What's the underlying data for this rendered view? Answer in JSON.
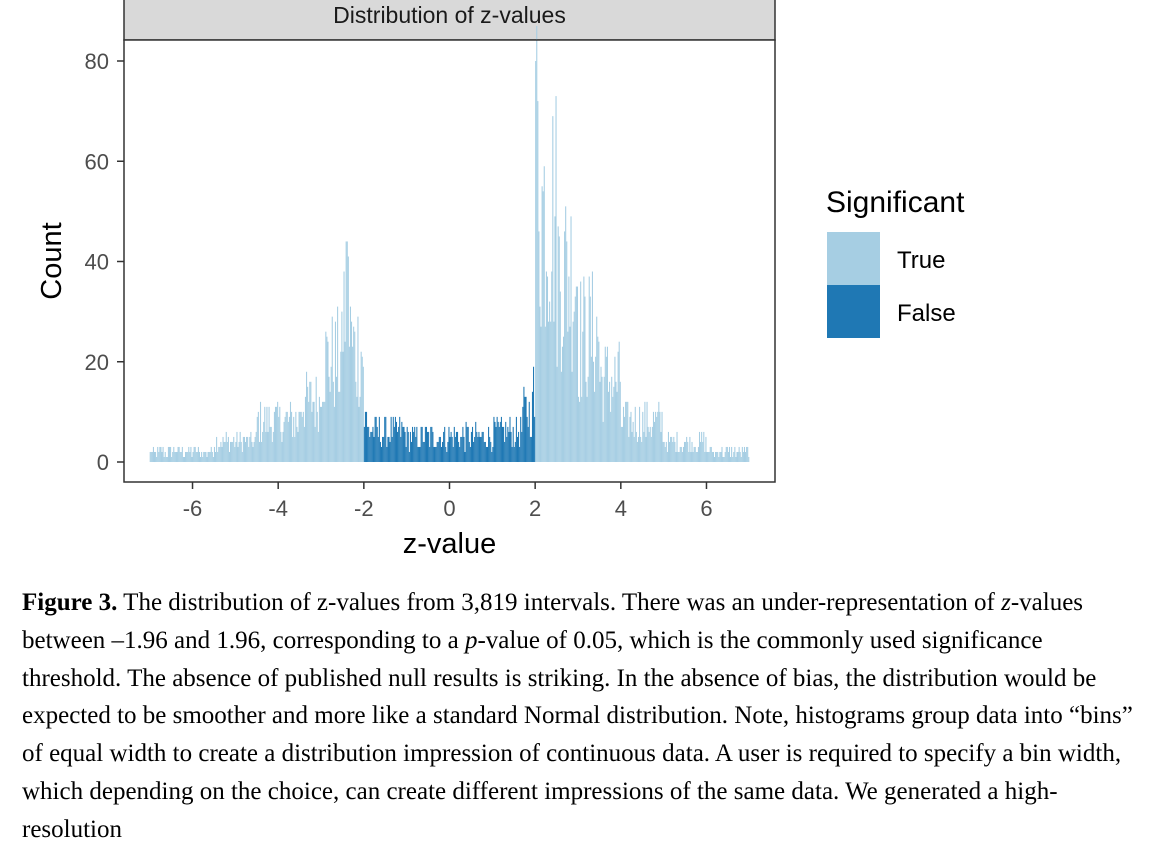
{
  "chart_data": {
    "type": "bar",
    "title": "Distribution of z-values",
    "xlabel": "z-value",
    "ylabel": "Count",
    "xlim": [
      -7.6,
      7.6
    ],
    "ylim": [
      0,
      84
    ],
    "x_ticks": [
      "-6",
      "-4",
      "-2",
      "0",
      "2",
      "4",
      "6"
    ],
    "x_tick_values": [
      -6,
      -4,
      -2,
      0,
      2,
      4,
      6
    ],
    "y_ticks": [
      "0",
      "20",
      "40",
      "60",
      "80"
    ],
    "y_tick_values": [
      0,
      20,
      40,
      60,
      80
    ],
    "bin_width": 0.025,
    "x_range": [
      -7,
      7
    ],
    "legend": {
      "title": "Significant",
      "position": "right",
      "entries": [
        {
          "label": "True",
          "color": "#a6cee3"
        },
        {
          "label": "False",
          "color": "#1f78b4"
        }
      ]
    },
    "series": [
      {
        "name": "True",
        "color": "#a6cee3",
        "segments": [
          {
            "range": [
              -7,
              -5.5
            ],
            "approx_count": 2
          },
          {
            "range": [
              -5.5,
              -4.5
            ],
            "approx_count": 4
          },
          {
            "range": [
              -4.5,
              -3.5
            ],
            "approx_count": 8
          },
          {
            "range": [
              -3.5,
              -3
            ],
            "approx_count": 12
          },
          {
            "range": [
              -3,
              -2.5
            ],
            "approx_count": 20
          },
          {
            "range": [
              -2.5,
              -2.3
            ],
            "approx_count": 30
          },
          {
            "range": [
              -2.3,
              -2
            ],
            "approx_count": 22
          },
          {
            "range": [
              2,
              2.1
            ],
            "approx_count": 62
          },
          {
            "range": [
              2.1,
              2.5
            ],
            "approx_count": 50
          },
          {
            "range": [
              2.5,
              3
            ],
            "approx_count": 38
          },
          {
            "range": [
              3,
              3.5
            ],
            "approx_count": 25
          },
          {
            "range": [
              3.5,
              4
            ],
            "approx_count": 16
          },
          {
            "range": [
              4,
              5
            ],
            "approx_count": 8
          },
          {
            "range": [
              5,
              6
            ],
            "approx_count": 4
          },
          {
            "range": [
              6,
              7
            ],
            "approx_count": 2
          }
        ],
        "peaks": [
          {
            "x": -2.4,
            "y": 44
          },
          {
            "x": 2.02,
            "y": 80
          }
        ]
      },
      {
        "name": "False",
        "color": "#1f78b4",
        "segments": [
          {
            "range": [
              -2,
              -1
            ],
            "approx_count": 6
          },
          {
            "range": [
              -1,
              1
            ],
            "approx_count": 5
          },
          {
            "range": [
              1,
              1.7
            ],
            "approx_count": 6
          },
          {
            "range": [
              1.7,
              2
            ],
            "approx_count": 10
          }
        ],
        "peaks": [
          {
            "x": 1.97,
            "y": 19
          },
          {
            "x": -1.95,
            "y": 10
          }
        ]
      }
    ]
  },
  "caption": {
    "label": "Figure 3.",
    "text_1": " The distribution of z-values from 3,819 intervals. There was an under-representation of ",
    "z_italic": "z",
    "text_2": "-values between –1.96 and 1.96, corresponding to a ",
    "p_italic": "p",
    "text_3": "-value of 0.05, which is the commonly used significance threshold. The absence of published null results is striking. In the absence of bias, the distribution would be expected to be smoother and more like a standard Normal distribution. Note, histograms group data into “bins” of equal width to create a distribution impression of continuous data. A user is required to specify a bin width, which depending on the choice, can create different impressions of the same data. We generated a high-resolution"
  }
}
